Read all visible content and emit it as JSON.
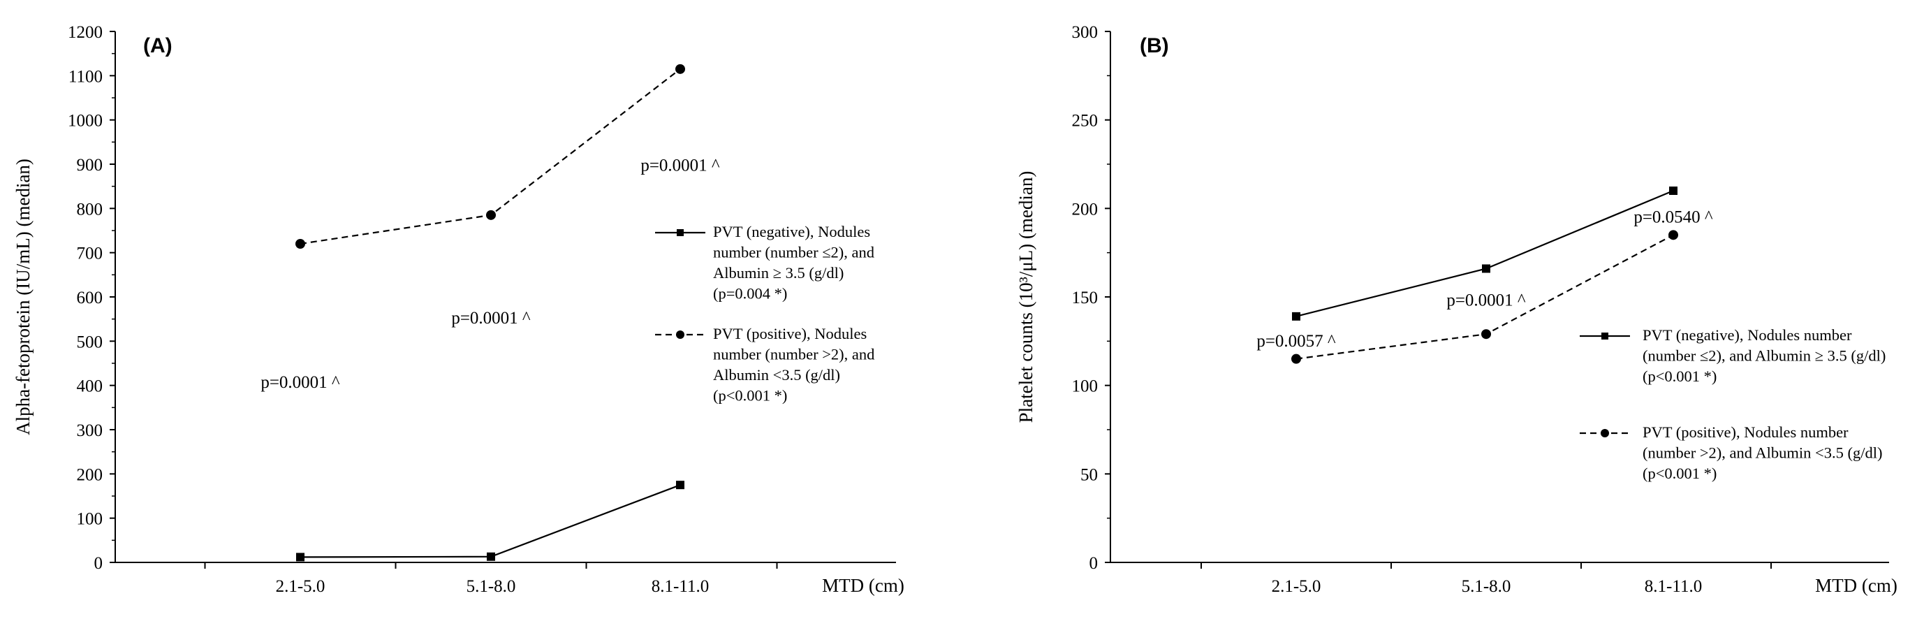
{
  "chart_data": [
    {
      "type": "line",
      "panel_label": "(A)",
      "categories": [
        "2.1-5.0",
        "5.1-8.0",
        "8.1-11.0"
      ],
      "xlabel": "MTD (cm)",
      "ylabel": "Alpha-fetoprotein (IU/mL) (median)",
      "ylim": [
        0,
        1200
      ],
      "yticks": [
        0,
        100,
        200,
        300,
        400,
        500,
        600,
        700,
        800,
        900,
        1000,
        1100,
        1200
      ],
      "series": [
        {
          "name": "PVT (negative)",
          "style": "solid",
          "marker": "square",
          "values": [
            12,
            13,
            175
          ],
          "legend_lines": [
            "PVT (negative), Nodules",
            "number (number ≤2), and",
            "Albumin ≥ 3.5 (g/dl)",
            "(p=0.004 *)"
          ]
        },
        {
          "name": "PVT (positive)",
          "style": "dashed",
          "marker": "circle",
          "values": [
            720,
            785,
            1115
          ],
          "legend_lines": [
            "PVT (positive), Nodules",
            "number (number >2), and",
            "Albumin <3.5 (g/dl)",
            "(p<0.001 *)"
          ]
        }
      ],
      "annotations": [
        {
          "text": "p=0.0001 ^",
          "category": "2.1-5.0",
          "y": 395
        },
        {
          "text": "p=0.0001 ^",
          "category": "5.1-8.0",
          "y": 540
        },
        {
          "text": "p=0.0001 ^",
          "category": "8.1-11.0",
          "y": 885
        }
      ]
    },
    {
      "type": "line",
      "panel_label": "(B)",
      "categories": [
        "2.1-5.0",
        "5.1-8.0",
        "8.1-11.0"
      ],
      "xlabel": "MTD (cm)",
      "ylabel": "Platelet counts (10³/μL) (median)",
      "ylim": [
        0,
        300
      ],
      "yticks": [
        0,
        50,
        100,
        150,
        200,
        250,
        300
      ],
      "series": [
        {
          "name": "PVT (negative)",
          "style": "solid",
          "marker": "square",
          "values": [
            139,
            166,
            210
          ],
          "legend_lines": [
            "PVT (negative), Nodules number",
            "(number ≤2), and Albumin ≥ 3.5 (g/dl)",
            "(p<0.001 *)"
          ]
        },
        {
          "name": "PVT (positive)",
          "style": "dashed",
          "marker": "circle",
          "values": [
            115,
            129,
            185
          ],
          "legend_lines": [
            "PVT (positive), Nodules number",
            "(number >2), and Albumin <3.5 (g/dl)",
            "(p<0.001 *)"
          ]
        }
      ],
      "annotations": [
        {
          "text": "p=0.0057 ^",
          "category": "2.1-5.0",
          "y": 122
        },
        {
          "text": "p=0.0001 ^",
          "category": "5.1-8.0",
          "y": 145
        },
        {
          "text": "p=0.0540 ^",
          "category": "8.1-11.0",
          "y": 192
        }
      ]
    }
  ]
}
